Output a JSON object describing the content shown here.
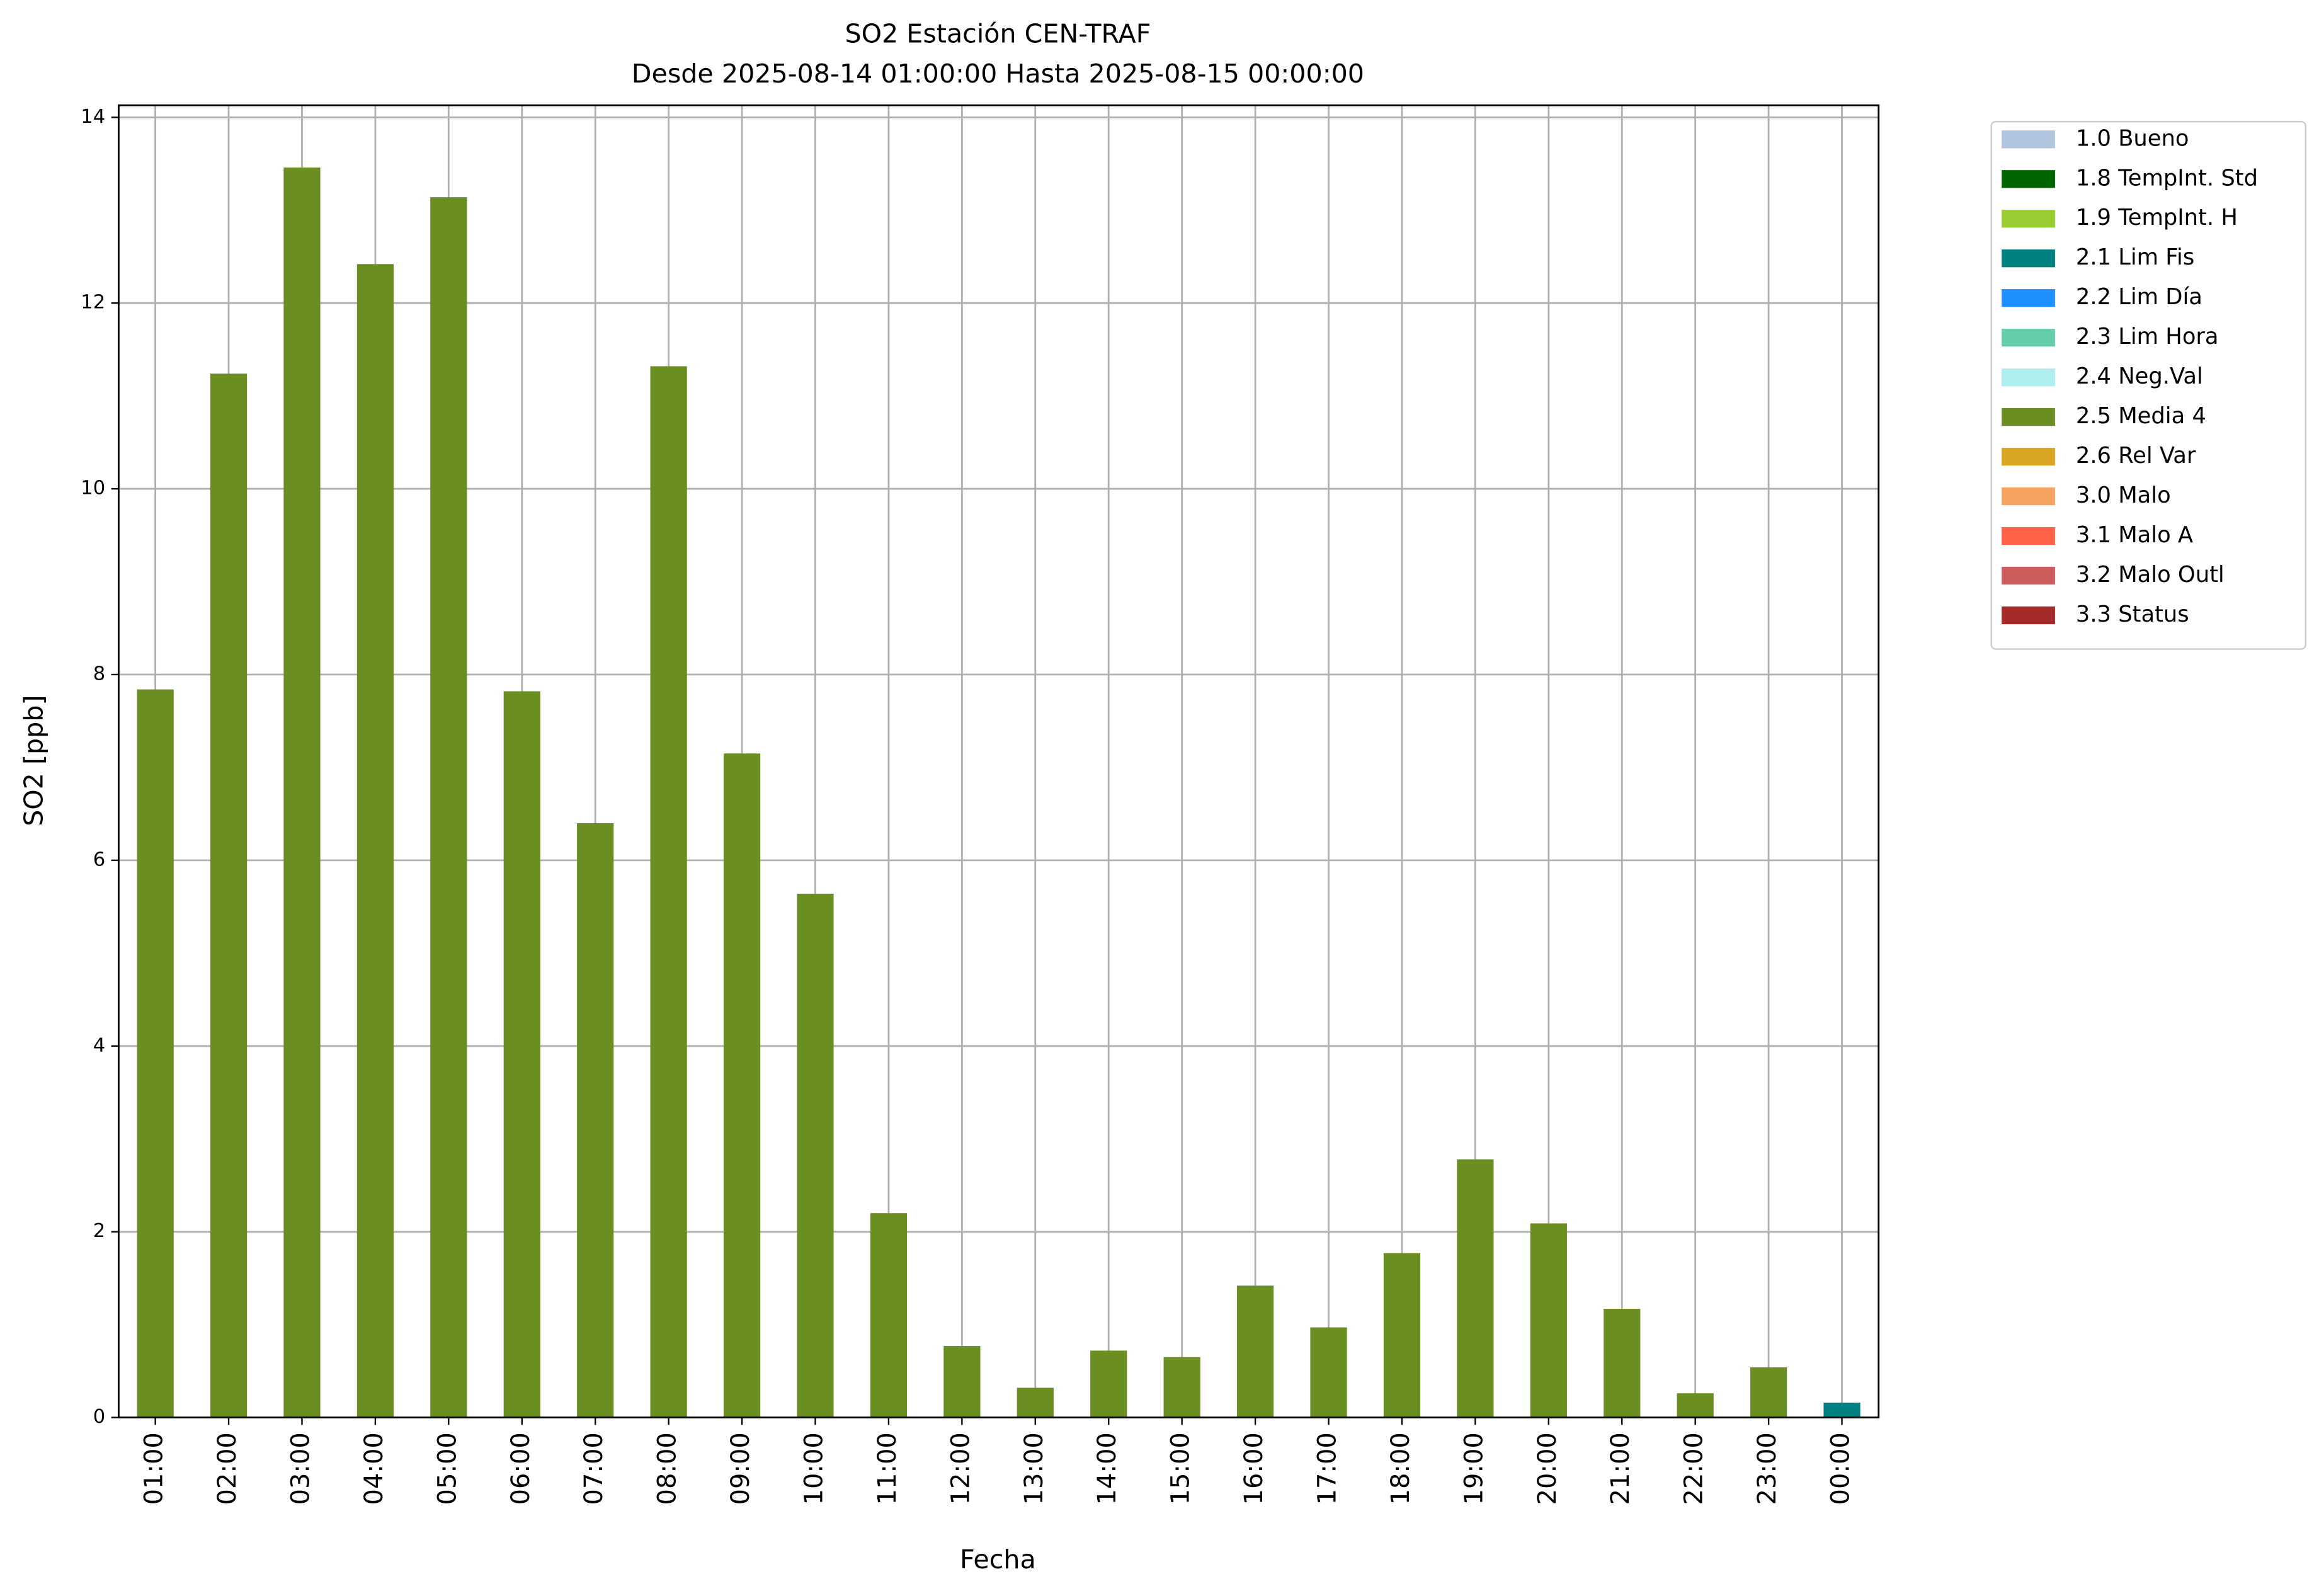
{
  "chart_data": {
    "type": "bar",
    "stacked": true,
    "title": "SO2 Estación CEN-TRAF",
    "subtitle": "Desde 2025-08-14 01:00:00 Hasta 2025-08-15 00:00:00",
    "x_label": "Fecha",
    "y_label": "SO2 [ppb]",
    "categories": [
      "01:00",
      "02:00",
      "03:00",
      "04:00",
      "05:00",
      "06:00",
      "07:00",
      "08:00",
      "09:00",
      "10:00",
      "11:00",
      "12:00",
      "13:00",
      "14:00",
      "15:00",
      "16:00",
      "17:00",
      "18:00",
      "19:00",
      "20:00",
      "21:00",
      "22:00",
      "23:00",
      "00:00"
    ],
    "ylim": [
      0,
      14.13
    ],
    "yticks": [
      0,
      2,
      4,
      6,
      8,
      10,
      12,
      14
    ],
    "grid": true,
    "legend_position": "outside-right",
    "series": [
      {
        "name": "1.0 Bueno",
        "color": "#b0c4de",
        "values": [
          null,
          null,
          null,
          null,
          null,
          null,
          null,
          null,
          null,
          null,
          null,
          null,
          null,
          null,
          null,
          null,
          null,
          null,
          null,
          null,
          null,
          null,
          null,
          null
        ]
      },
      {
        "name": "1.8 TempInt. Std",
        "color": "#006400",
        "values": [
          null,
          null,
          null,
          null,
          null,
          null,
          null,
          null,
          null,
          null,
          null,
          null,
          null,
          null,
          null,
          null,
          null,
          null,
          null,
          null,
          null,
          null,
          null,
          null
        ]
      },
      {
        "name": "1.9 TempInt. H",
        "color": "#9acd32",
        "values": [
          null,
          null,
          null,
          null,
          null,
          null,
          null,
          null,
          null,
          null,
          null,
          null,
          null,
          null,
          null,
          null,
          null,
          null,
          null,
          null,
          null,
          null,
          null,
          null
        ]
      },
      {
        "name": "2.1 Lim Fis",
        "color": "#008080",
        "values": [
          null,
          null,
          null,
          null,
          null,
          null,
          null,
          null,
          null,
          null,
          null,
          null,
          null,
          null,
          null,
          null,
          null,
          null,
          null,
          null,
          null,
          null,
          null,
          0.16
        ]
      },
      {
        "name": "2.2 Lim Día",
        "color": "#1e90ff",
        "values": [
          null,
          null,
          null,
          null,
          null,
          null,
          null,
          null,
          null,
          null,
          null,
          null,
          null,
          null,
          null,
          null,
          null,
          null,
          null,
          null,
          null,
          null,
          null,
          null
        ]
      },
      {
        "name": "2.3 Lim Hora",
        "color": "#66cdaa",
        "values": [
          null,
          null,
          null,
          null,
          null,
          null,
          null,
          null,
          null,
          null,
          null,
          null,
          null,
          null,
          null,
          null,
          null,
          null,
          null,
          null,
          null,
          null,
          null,
          null
        ]
      },
      {
        "name": "2.4 Neg.Val",
        "color": "#afeeee",
        "values": [
          null,
          null,
          null,
          null,
          null,
          null,
          null,
          null,
          null,
          null,
          null,
          null,
          null,
          null,
          null,
          null,
          null,
          null,
          null,
          null,
          null,
          null,
          null,
          null
        ]
      },
      {
        "name": "2.5 Media 4",
        "color": "#6b8e23",
        "values": [
          7.84,
          11.24,
          13.46,
          12.42,
          13.14,
          7.82,
          6.4,
          11.32,
          7.15,
          5.64,
          2.2,
          0.77,
          0.32,
          0.72,
          0.65,
          1.42,
          0.97,
          1.77,
          2.78,
          2.09,
          1.17,
          0.26,
          0.54,
          null
        ]
      },
      {
        "name": "2.6 Rel Var",
        "color": "#daa520",
        "values": [
          null,
          null,
          null,
          null,
          null,
          null,
          null,
          null,
          null,
          null,
          null,
          null,
          null,
          null,
          null,
          null,
          null,
          null,
          null,
          null,
          null,
          null,
          null,
          null
        ]
      },
      {
        "name": "3.0 Malo",
        "color": "#f4a460",
        "values": [
          null,
          null,
          null,
          null,
          null,
          null,
          null,
          null,
          null,
          null,
          null,
          null,
          null,
          null,
          null,
          null,
          null,
          null,
          null,
          null,
          null,
          null,
          null,
          null
        ]
      },
      {
        "name": "3.1 Malo A",
        "color": "#ff6347",
        "values": [
          null,
          null,
          null,
          null,
          null,
          null,
          null,
          null,
          null,
          null,
          null,
          null,
          null,
          null,
          null,
          null,
          null,
          null,
          null,
          null,
          null,
          null,
          null,
          null
        ]
      },
      {
        "name": "3.2 Malo Outl",
        "color": "#cd5c5c",
        "values": [
          null,
          null,
          null,
          null,
          null,
          null,
          null,
          null,
          null,
          null,
          null,
          null,
          null,
          null,
          null,
          null,
          null,
          null,
          null,
          null,
          null,
          null,
          null,
          null
        ]
      },
      {
        "name": "3.3 Status",
        "color": "#a52a2a",
        "values": [
          null,
          null,
          null,
          null,
          null,
          null,
          null,
          null,
          null,
          null,
          null,
          null,
          null,
          null,
          null,
          null,
          null,
          null,
          null,
          null,
          null,
          null,
          null,
          null
        ]
      }
    ]
  }
}
